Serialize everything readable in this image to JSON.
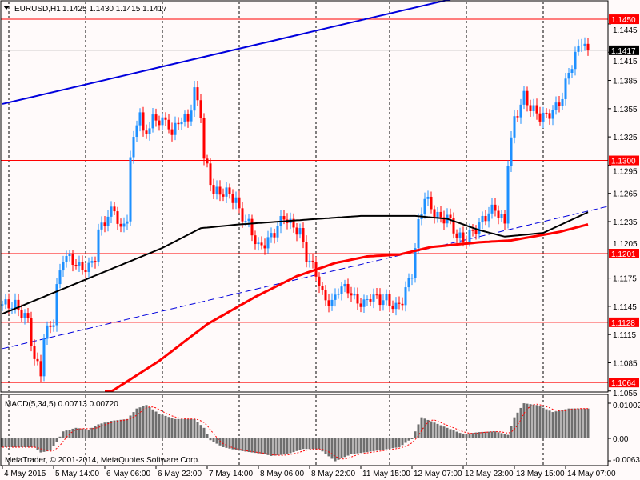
{
  "header": {
    "symbol": "EURUSD,H1",
    "ohlc": "1.1425 1.1430 1.1415 1.1417"
  },
  "indicator": {
    "label": "MACD(5,34,5) 0.00713 0.00720"
  },
  "copyright": "MetaTrader, © 2001-2014, MetaQuotes Software Corp.",
  "colors": {
    "background": "#fffafa",
    "bull": "#1e90ff",
    "bear": "#ff0000",
    "ma_slow": "#ff0000",
    "ma_fast": "#000000",
    "trendline": "#0000dd",
    "level": "#ff0000",
    "macd_hist": "#6e6e6e",
    "macd_signal": "#ff0000"
  },
  "chart_data": {
    "type": "candlestick",
    "timeframe": "H1",
    "x_tick_labels": [
      "4 May 2015",
      "5 May 14:00",
      "6 May 06:00",
      "6 May 22:00",
      "7 May 14:00",
      "8 May 06:00",
      "8 May 22:00",
      "11 May 15:00",
      "12 May 07:00",
      "12 May 23:00",
      "13 May 15:00",
      "14 May 07:00"
    ],
    "y_tick_labels": [
      "1.1445",
      "1.1415",
      "1.1385",
      "1.1355",
      "1.1325",
      "1.1295",
      "1.1265",
      "1.1235",
      "1.1205",
      "1.1175",
      "1.1145",
      "1.1115",
      "1.1085",
      "1.1055"
    ],
    "ylim": [
      1.105,
      1.146
    ],
    "close_keypoints": [
      [
        0,
        1.1147
      ],
      [
        4,
        1.1146
      ],
      [
        8,
        1.113
      ],
      [
        10,
        1.1088
      ],
      [
        12,
        1.1075
      ],
      [
        13,
        1.1113
      ],
      [
        16,
        1.113
      ],
      [
        17,
        1.1164
      ],
      [
        19,
        1.1198
      ],
      [
        22,
        1.1194
      ],
      [
        24,
        1.1186
      ],
      [
        27,
        1.1186
      ],
      [
        29,
        1.1198
      ],
      [
        30,
        1.1224
      ],
      [
        33,
        1.1241
      ],
      [
        35,
        1.1249
      ],
      [
        37,
        1.1224
      ],
      [
        39,
        1.1241
      ],
      [
        40,
        1.13
      ],
      [
        42,
        1.1343
      ],
      [
        43,
        1.1351
      ],
      [
        44,
        1.1326
      ],
      [
        47,
        1.1343
      ],
      [
        49,
        1.1343
      ],
      [
        52,
        1.1339
      ],
      [
        53,
        1.1326
      ],
      [
        55,
        1.1343
      ],
      [
        58,
        1.1343
      ],
      [
        60,
        1.1373
      ],
      [
        62,
        1.1351
      ],
      [
        63,
        1.13
      ],
      [
        64,
        1.1292
      ],
      [
        66,
        1.1266
      ],
      [
        68,
        1.1266
      ],
      [
        70,
        1.1266
      ],
      [
        73,
        1.1258
      ],
      [
        74,
        1.1245
      ],
      [
        77,
        1.1232
      ],
      [
        79,
        1.1215
      ],
      [
        80,
        1.1207
      ],
      [
        83,
        1.1215
      ],
      [
        85,
        1.1224
      ],
      [
        88,
        1.1241
      ],
      [
        90,
        1.1232
      ],
      [
        93,
        1.1224
      ],
      [
        95,
        1.1198
      ],
      [
        98,
        1.1181
      ],
      [
        100,
        1.1156
      ],
      [
        103,
        1.1147
      ],
      [
        105,
        1.1164
      ],
      [
        108,
        1.1164
      ],
      [
        110,
        1.1152
      ],
      [
        113,
        1.1147
      ],
      [
        115,
        1.1156
      ],
      [
        118,
        1.1152
      ],
      [
        120,
        1.1152
      ],
      [
        123,
        1.1143
      ],
      [
        125,
        1.1152
      ],
      [
        128,
        1.1181
      ],
      [
        130,
        1.1232
      ],
      [
        132,
        1.1262
      ],
      [
        134,
        1.1249
      ],
      [
        137,
        1.1237
      ],
      [
        139,
        1.1241
      ],
      [
        142,
        1.122
      ],
      [
        144,
        1.1215
      ],
      [
        147,
        1.1224
      ],
      [
        149,
        1.1232
      ],
      [
        152,
        1.1245
      ],
      [
        154,
        1.1249
      ],
      [
        157,
        1.1232
      ],
      [
        158,
        1.13
      ],
      [
        160,
        1.1343
      ],
      [
        163,
        1.1368
      ],
      [
        165,
        1.1356
      ],
      [
        168,
        1.1347
      ],
      [
        170,
        1.1347
      ],
      [
        173,
        1.1356
      ],
      [
        175,
        1.1368
      ],
      [
        177,
        1.1394
      ],
      [
        179,
        1.1411
      ],
      [
        181,
        1.1428
      ],
      [
        183,
        1.1417
      ]
    ],
    "ma_black_keypoints": [
      [
        0,
        1.1137
      ],
      [
        25,
        1.1172
      ],
      [
        50,
        1.1207
      ],
      [
        62,
        1.1228
      ],
      [
        74,
        1.1232
      ],
      [
        99,
        1.1238
      ],
      [
        112,
        1.1241
      ],
      [
        129,
        1.1241
      ],
      [
        139,
        1.1238
      ],
      [
        149,
        1.1226
      ],
      [
        157,
        1.1219
      ],
      [
        169,
        1.1223
      ],
      [
        183,
        1.1245
      ]
    ],
    "ma_red_keypoints": [
      [
        32,
        1.105
      ],
      [
        49,
        1.1087
      ],
      [
        64,
        1.1126
      ],
      [
        79,
        1.1155
      ],
      [
        92,
        1.1177
      ],
      [
        104,
        1.1191
      ],
      [
        114,
        1.1198
      ],
      [
        124,
        1.12
      ],
      [
        134,
        1.1208
      ],
      [
        149,
        1.1213
      ],
      [
        159,
        1.1215
      ],
      [
        174,
        1.1224
      ],
      [
        183,
        1.1232
      ]
    ],
    "horizontal_levels": [
      1.145,
      1.13,
      1.1201,
      1.1128,
      1.1064
    ],
    "current_price": 1.1417,
    "trendlines": [
      {
        "style": "solid",
        "from": [
          0,
          1.136
        ],
        "to": [
          170,
          1.1495
        ]
      },
      {
        "style": "dashed",
        "from": [
          0,
          1.11
        ],
        "to": [
          189,
          1.1251
        ]
      }
    ],
    "macd": {
      "y_tick_labels": [
        "0.01002",
        "0.00",
        "-0.00638"
      ],
      "ylim": [
        -0.00638,
        0.01002
      ],
      "hist_keypoints": [
        [
          0,
          -0.0025
        ],
        [
          10,
          -0.0025
        ],
        [
          12,
          -0.004
        ],
        [
          15,
          -0.0035
        ],
        [
          17,
          -0.001
        ],
        [
          19,
          0.002
        ],
        [
          23,
          0.003
        ],
        [
          27,
          0.0025
        ],
        [
          30,
          0.004
        ],
        [
          34,
          0.005
        ],
        [
          39,
          0.0055
        ],
        [
          42,
          0.0085
        ],
        [
          45,
          0.0095
        ],
        [
          49,
          0.007
        ],
        [
          54,
          0.0055
        ],
        [
          60,
          0.0055
        ],
        [
          63,
          0.003
        ],
        [
          65,
          -0.0005
        ],
        [
          69,
          -0.0025
        ],
        [
          74,
          -0.0035
        ],
        [
          82,
          -0.0045
        ],
        [
          84,
          -0.005
        ],
        [
          89,
          -0.0045
        ],
        [
          94,
          -0.003
        ],
        [
          99,
          -0.003
        ],
        [
          104,
          -0.0065
        ],
        [
          109,
          -0.0045
        ],
        [
          117,
          -0.0035
        ],
        [
          124,
          -0.0025
        ],
        [
          128,
          0.0
        ],
        [
          131,
          0.006
        ],
        [
          135,
          0.0045
        ],
        [
          139,
          0.003
        ],
        [
          144,
          0.0012
        ],
        [
          149,
          0.0018
        ],
        [
          154,
          0.002
        ],
        [
          158,
          0.001
        ],
        [
          160,
          0.006
        ],
        [
          163,
          0.01
        ],
        [
          167,
          0.0095
        ],
        [
          172,
          0.0075
        ],
        [
          177,
          0.0085
        ],
        [
          183,
          0.0085
        ]
      ]
    }
  }
}
